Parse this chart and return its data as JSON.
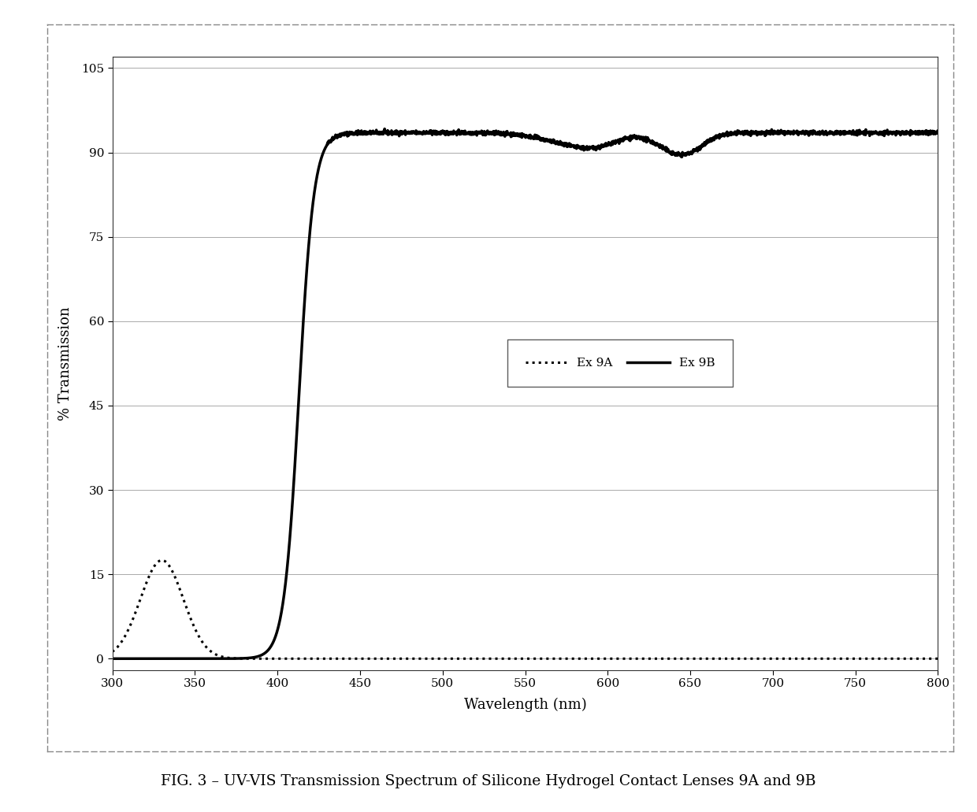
{
  "title": "FIG. 3 – UV-VIS Transmission Spectrum of Silicone Hydrogel Contact Lenses 9A and 9B",
  "xlabel": "Wavelength (nm)",
  "ylabel": "% Transmission",
  "xlim": [
    300,
    800
  ],
  "ylim": [
    -2,
    107
  ],
  "yticks": [
    0,
    15,
    30,
    45,
    60,
    75,
    90,
    105
  ],
  "xticks": [
    300,
    350,
    400,
    450,
    500,
    550,
    600,
    650,
    700,
    750,
    800
  ],
  "background_color": "#ffffff",
  "plot_bg_color": "#ffffff",
  "legend_labels": [
    "Ex 9A",
    "Ex 9B"
  ],
  "outer_border_color": "#888888",
  "grid_color": "#aaaaaa",
  "line_color": "#000000"
}
